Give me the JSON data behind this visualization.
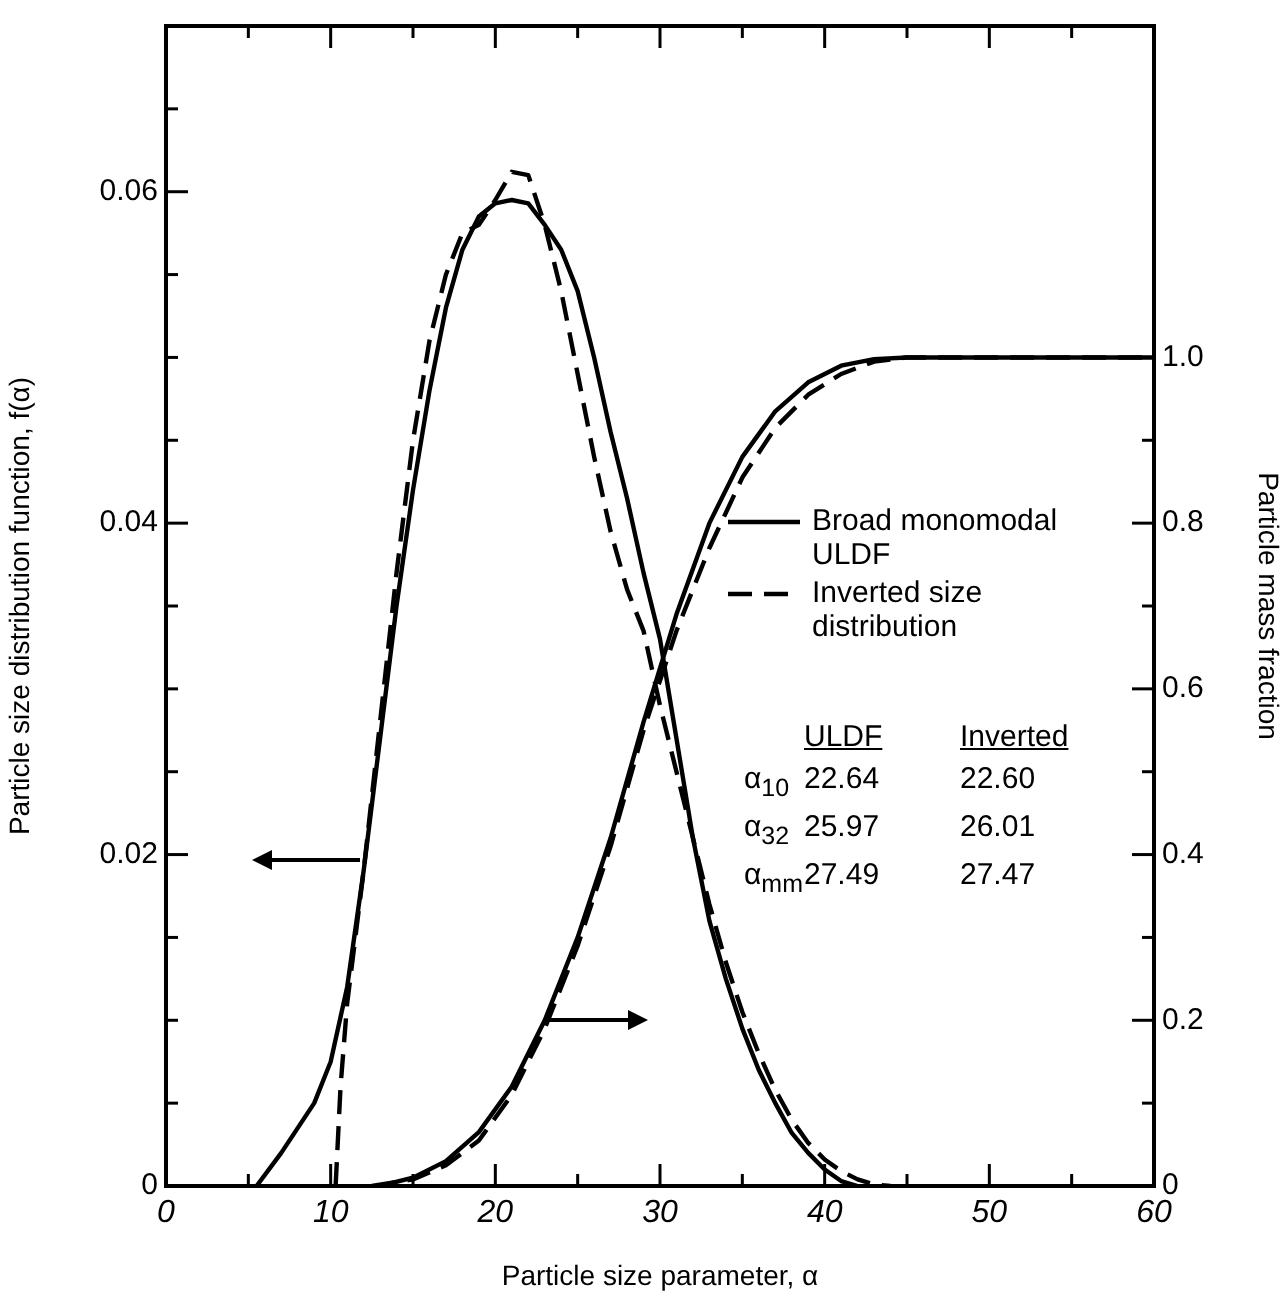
{
  "chart_data": {
    "type": "line",
    "xlabel": "Particle size parameter, α",
    "ylabel": "Particle size distribution function, f(α)",
    "y2label": "Particle mass fraction",
    "xlim": [
      0,
      60
    ],
    "xticks": [
      0,
      {
        "value": 5,
        "label": null
      },
      10,
      {
        "value": 15,
        "label": null
      },
      20,
      {
        "value": 25,
        "label": null
      },
      30,
      {
        "value": 35,
        "label": null
      },
      40,
      {
        "value": 45,
        "label": null
      },
      50,
      {
        "value": 55,
        "label": null
      },
      60
    ],
    "ylim": [
      0,
      0.07
    ],
    "yticks": [
      0,
      {
        "value": 0.005,
        "label": null
      },
      {
        "value": 0.01,
        "label": null
      },
      {
        "value": 0.015,
        "label": null
      },
      0.02,
      {
        "value": 0.025,
        "label": null
      },
      {
        "value": 0.03,
        "label": null
      },
      {
        "value": 0.035,
        "label": null
      },
      0.04,
      {
        "value": 0.045,
        "label": null
      },
      {
        "value": 0.05,
        "label": null
      },
      {
        "value": 0.055,
        "label": null
      },
      0.06,
      {
        "value": 0.065,
        "label": null
      }
    ],
    "y2lim": [
      0,
      1.4
    ],
    "y2ticks": [
      0,
      {
        "value": 0.1,
        "label": null
      },
      0.2,
      {
        "value": 0.3,
        "label": null
      },
      0.4,
      {
        "value": 0.5,
        "label": null
      },
      0.6,
      {
        "value": 0.7,
        "label": null
      },
      0.8,
      {
        "value": 0.9,
        "label": null
      },
      {
        "value": 1.0,
        "label": "1.0"
      }
    ],
    "grid": false,
    "legend": "right",
    "marker": "none",
    "series": [
      {
        "name": "Broad monomodal ULDF",
        "color": "#000000",
        "line_style": "solid",
        "x": [
          5.5,
          7,
          9,
          10,
          11,
          12,
          13,
          14,
          15,
          16,
          17,
          18,
          19,
          20,
          21,
          22,
          23,
          24,
          25,
          26,
          27,
          28,
          29,
          30,
          31,
          32,
          33,
          34,
          35,
          36,
          37,
          38,
          39,
          40,
          41,
          42
        ],
        "values": [
          0,
          0.002,
          0.005,
          0.0075,
          0.012,
          0.019,
          0.027,
          0.035,
          0.042,
          0.048,
          0.053,
          0.0565,
          0.0585,
          0.0593,
          0.0595,
          0.0593,
          0.058,
          0.0565,
          0.054,
          0.05,
          0.0455,
          0.0415,
          0.037,
          0.033,
          0.027,
          0.021,
          0.016,
          0.0125,
          0.0095,
          0.007,
          0.005,
          0.0032,
          0.002,
          0.001,
          0.0003,
          0
        ]
      },
      {
        "name": "Inverted size distribution",
        "color": "#000000",
        "line_style": "dashed",
        "x": [
          10.3,
          10.6,
          11,
          12,
          13,
          14,
          15,
          16,
          17,
          18,
          19,
          20,
          21,
          22,
          23,
          24,
          25,
          26,
          27,
          28,
          29,
          30,
          31,
          32,
          33,
          34,
          35,
          36,
          37,
          38,
          39,
          40,
          41,
          42,
          43,
          44
        ],
        "values": [
          0,
          0.006,
          0.011,
          0.019,
          0.028,
          0.037,
          0.045,
          0.051,
          0.055,
          0.0575,
          0.058,
          0.0595,
          0.0612,
          0.061,
          0.058,
          0.054,
          0.049,
          0.044,
          0.0395,
          0.036,
          0.0335,
          0.029,
          0.025,
          0.021,
          0.017,
          0.0135,
          0.0105,
          0.008,
          0.0058,
          0.004,
          0.0026,
          0.0016,
          0.0009,
          0.0004,
          0.0001,
          0
        ]
      },
      {
        "color": "#000000",
        "line_style": "solid",
        "axis": "y2",
        "x": [
          13,
          15,
          17,
          19,
          21,
          23,
          25,
          27,
          29,
          31,
          33,
          35,
          37,
          39,
          41,
          43,
          45,
          60
        ],
        "values": [
          0,
          0.01,
          0.03,
          0.065,
          0.12,
          0.2,
          0.3,
          0.42,
          0.56,
          0.69,
          0.8,
          0.88,
          0.935,
          0.97,
          0.99,
          0.998,
          1.0,
          1.0
        ]
      },
      {
        "color": "#000000",
        "line_style": "dashed",
        "axis": "y2",
        "x": [
          12.5,
          15,
          17,
          19,
          21,
          23,
          25,
          27,
          29,
          31,
          33,
          35,
          37,
          39,
          41,
          43,
          45,
          60
        ],
        "values": [
          0,
          0.008,
          0.025,
          0.055,
          0.11,
          0.19,
          0.29,
          0.41,
          0.55,
          0.67,
          0.77,
          0.855,
          0.915,
          0.955,
          0.98,
          0.995,
          1.0,
          1.0
        ]
      }
    ],
    "annotations": [
      "ULDF",
      "Inverted",
      "α$_{10}$",
      "22.64",
      "22.60",
      "α$_{32}$",
      "25.97",
      "26.01",
      "α$_{mm}$",
      "27.49",
      "27.47"
    ]
  }
}
